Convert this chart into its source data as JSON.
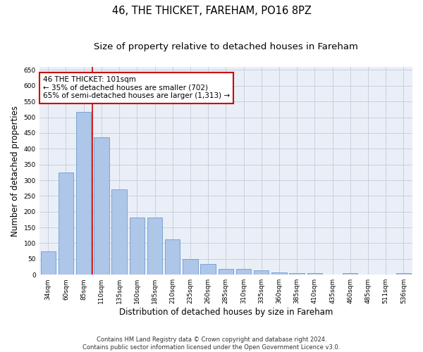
{
  "title": "46, THE THICKET, FAREHAM, PO16 8PZ",
  "subtitle": "Size of property relative to detached houses in Fareham",
  "xlabel": "Distribution of detached houses by size in Fareham",
  "ylabel": "Number of detached properties",
  "categories": [
    "34sqm",
    "60sqm",
    "85sqm",
    "110sqm",
    "135sqm",
    "160sqm",
    "185sqm",
    "210sqm",
    "235sqm",
    "260sqm",
    "285sqm",
    "310sqm",
    "335sqm",
    "360sqm",
    "385sqm",
    "410sqm",
    "435sqm",
    "460sqm",
    "485sqm",
    "511sqm",
    "536sqm"
  ],
  "values": [
    75,
    325,
    518,
    437,
    272,
    181,
    181,
    113,
    50,
    35,
    18,
    18,
    13,
    8,
    5,
    5,
    1,
    5,
    1,
    1,
    5
  ],
  "bar_color": "#aec6e8",
  "bar_edge_color": "#5b8fc9",
  "property_line_x": 2.5,
  "property_line_color": "#cc0000",
  "annotation_line1": "46 THE THICKET: 101sqm",
  "annotation_line2": "← 35% of detached houses are smaller (702)",
  "annotation_line3": "65% of semi-detached houses are larger (1,313) →",
  "annotation_box_color": "#cc0000",
  "ylim": [
    0,
    660
  ],
  "yticks": [
    0,
    50,
    100,
    150,
    200,
    250,
    300,
    350,
    400,
    450,
    500,
    550,
    600,
    650
  ],
  "grid_color": "#c8d0de",
  "background_color": "#eaeff7",
  "footer_line1": "Contains HM Land Registry data © Crown copyright and database right 2024.",
  "footer_line2": "Contains public sector information licensed under the Open Government Licence v3.0.",
  "title_fontsize": 10.5,
  "subtitle_fontsize": 9.5,
  "tick_fontsize": 6.5,
  "ylabel_fontsize": 8.5,
  "xlabel_fontsize": 8.5,
  "annotation_fontsize": 7.5,
  "footer_fontsize": 6.0
}
